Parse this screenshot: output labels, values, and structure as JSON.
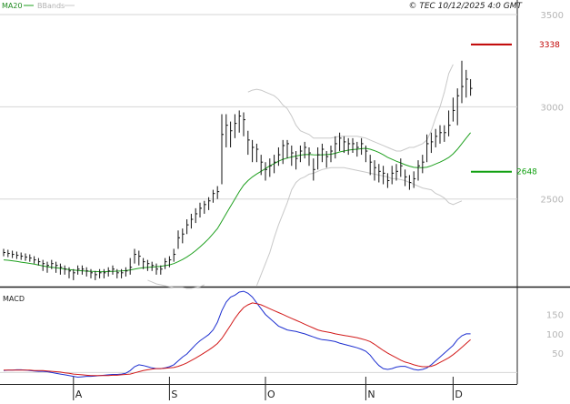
{
  "legend": {
    "ma_label": "MA20",
    "bb_label": "BBands"
  },
  "copyright": "© TEC 10/12/2025 4:0 GMT",
  "colors": {
    "ma": "#1fa01f",
    "bbands": "#c8c8c8",
    "bars": "#111111",
    "resistance": "#c00000",
    "support": "#10a010",
    "macd": "#1d2fd0",
    "signal": "#d21a1a",
    "grid": "#d6d6d6",
    "axis": "#222222"
  },
  "chart_data": [
    {
      "type": "line",
      "title": "",
      "ylim": [
        2030,
        3510
      ],
      "y_ticks": [
        2500,
        3000,
        3500
      ],
      "grid": true,
      "x_ticks": [
        {
          "label": "A",
          "index": 16
        },
        {
          "label": "S",
          "index": 38
        },
        {
          "label": "O",
          "index": 60
        },
        {
          "label": "N",
          "index": 83
        },
        {
          "label": "D",
          "index": 103
        }
      ],
      "ohlc_close": [
        2210,
        2205,
        2200,
        2195,
        2190,
        2185,
        2180,
        2170,
        2160,
        2150,
        2140,
        2150,
        2140,
        2130,
        2120,
        2110,
        2100,
        2120,
        2120,
        2110,
        2100,
        2090,
        2100,
        2100,
        2110,
        2120,
        2100,
        2100,
        2110,
        2130,
        2200,
        2190,
        2160,
        2150,
        2140,
        2120,
        2120,
        2160,
        2170,
        2200,
        2290,
        2310,
        2360,
        2390,
        2420,
        2450,
        2470,
        2490,
        2530,
        2540,
        2850,
        2900,
        2870,
        2910,
        2950,
        2930,
        2820,
        2780,
        2770,
        2700,
        2660,
        2680,
        2700,
        2740,
        2790,
        2800,
        2750,
        2720,
        2760,
        2780,
        2750,
        2660,
        2740,
        2770,
        2730,
        2760,
        2800,
        2830,
        2810,
        2800,
        2800,
        2780,
        2800,
        2760,
        2700,
        2670,
        2650,
        2640,
        2600,
        2640,
        2650,
        2680,
        2620,
        2590,
        2610,
        2680,
        2700,
        2800,
        2810,
        2840,
        2860,
        2860,
        2900,
        2980,
        3060,
        3110,
        3150,
        3100
      ],
      "ohlc_high": [
        2230,
        2225,
        2220,
        2215,
        2210,
        2205,
        2200,
        2190,
        2180,
        2170,
        2160,
        2170,
        2160,
        2150,
        2140,
        2130,
        2120,
        2140,
        2140,
        2130,
        2120,
        2110,
        2120,
        2120,
        2130,
        2140,
        2120,
        2120,
        2130,
        2180,
        2230,
        2220,
        2180,
        2170,
        2160,
        2150,
        2140,
        2180,
        2190,
        2230,
        2330,
        2340,
        2390,
        2420,
        2450,
        2480,
        2490,
        2510,
        2550,
        2570,
        2960,
        2960,
        2920,
        2960,
        2980,
        2970,
        2870,
        2820,
        2800,
        2740,
        2700,
        2720,
        2740,
        2780,
        2820,
        2820,
        2790,
        2760,
        2790,
        2810,
        2780,
        2720,
        2780,
        2800,
        2760,
        2790,
        2840,
        2860,
        2840,
        2830,
        2830,
        2810,
        2830,
        2790,
        2740,
        2710,
        2690,
        2680,
        2640,
        2680,
        2690,
        2720,
        2660,
        2630,
        2650,
        2710,
        2740,
        2850,
        2860,
        2880,
        2900,
        2900,
        2980,
        3050,
        3100,
        3250,
        3200,
        3150
      ],
      "ohlc_low": [
        2190,
        2185,
        2180,
        2175,
        2170,
        2165,
        2160,
        2150,
        2140,
        2110,
        2100,
        2120,
        2100,
        2090,
        2090,
        2070,
        2060,
        2090,
        2090,
        2080,
        2070,
        2060,
        2070,
        2070,
        2080,
        2090,
        2070,
        2070,
        2080,
        2090,
        2150,
        2140,
        2120,
        2110,
        2110,
        2090,
        2090,
        2120,
        2130,
        2160,
        2230,
        2260,
        2310,
        2340,
        2370,
        2400,
        2420,
        2440,
        2480,
        2500,
        2580,
        2780,
        2780,
        2830,
        2860,
        2840,
        2740,
        2700,
        2700,
        2630,
        2600,
        2620,
        2640,
        2680,
        2690,
        2720,
        2680,
        2660,
        2700,
        2720,
        2680,
        2600,
        2660,
        2700,
        2670,
        2700,
        2720,
        2760,
        2750,
        2740,
        2750,
        2730,
        2740,
        2700,
        2630,
        2600,
        2590,
        2580,
        2560,
        2580,
        2600,
        2620,
        2570,
        2550,
        2560,
        2600,
        2640,
        2700,
        2750,
        2780,
        2800,
        2810,
        2840,
        2920,
        2900,
        3020,
        3050,
        3060
      ],
      "ma20": [
        2170,
        2168,
        2165,
        2162,
        2158,
        2155,
        2151,
        2147,
        2142,
        2137,
        2133,
        2130,
        2127,
        2124,
        2121,
        2118,
        2115,
        2113,
        2111,
        2109,
        2108,
        2107,
        2106,
        2106,
        2107,
        2108,
        2109,
        2110,
        2112,
        2115,
        2120,
        2124,
        2127,
        2129,
        2131,
        2133,
        2135,
        2139,
        2143,
        2150,
        2160,
        2172,
        2186,
        2202,
        2220,
        2240,
        2262,
        2285,
        2312,
        2340,
        2380,
        2420,
        2460,
        2500,
        2540,
        2575,
        2600,
        2620,
        2636,
        2650,
        2665,
        2680,
        2692,
        2705,
        2715,
        2722,
        2728,
        2733,
        2738,
        2741,
        2742,
        2740,
        2739,
        2740,
        2741,
        2743,
        2748,
        2755,
        2760,
        2765,
        2768,
        2770,
        2773,
        2775,
        2770,
        2762,
        2752,
        2740,
        2726,
        2715,
        2705,
        2696,
        2686,
        2678,
        2672,
        2670,
        2670,
        2673,
        2680,
        2690,
        2700,
        2712,
        2725,
        2745,
        2770,
        2800,
        2830,
        2860
      ],
      "bb_upper": [
        null,
        null,
        null,
        null,
        null,
        null,
        null,
        null,
        null,
        null,
        null,
        null,
        null,
        null,
        null,
        null,
        null,
        null,
        null,
        null,
        null,
        null,
        null,
        null,
        null,
        null,
        null,
        null,
        null,
        null,
        null,
        null,
        null,
        null,
        null,
        null,
        null,
        null,
        null,
        null,
        null,
        null,
        null,
        null,
        null,
        null,
        null,
        null,
        null,
        null,
        null,
        null,
        null,
        null,
        null,
        null,
        3080,
        3090,
        3095,
        3090,
        3080,
        3070,
        3060,
        3040,
        3010,
        2990,
        2950,
        2900,
        2870,
        2860,
        2850,
        2830,
        2830,
        2830,
        2830,
        2830,
        2835,
        2840,
        2840,
        2840,
        2840,
        2840,
        2835,
        2830,
        2820,
        2810,
        2800,
        2790,
        2780,
        2770,
        2760,
        2760,
        2770,
        2780,
        2780,
        2790,
        2800,
        2820,
        2870,
        2940,
        3000,
        3080,
        3180,
        3230
      ],
      "bb_lower": [
        null,
        null,
        null,
        null,
        null,
        null,
        null,
        null,
        null,
        null,
        null,
        null,
        null,
        null,
        null,
        null,
        null,
        null,
        null,
        null,
        null,
        null,
        null,
        null,
        null,
        null,
        null,
        null,
        null,
        null,
        null,
        null,
        null,
        2060,
        2050,
        2040,
        2035,
        2030,
        2025,
        2020,
        2020,
        2020,
        2015,
        2015,
        2020,
        2025,
        2035,
        null,
        null,
        null,
        null,
        null,
        null,
        null,
        null,
        null,
        null,
        null,
        2030,
        2090,
        2150,
        2210,
        2290,
        2360,
        2420,
        2480,
        2550,
        2590,
        2610,
        2620,
        2635,
        2640,
        2650,
        2660,
        2665,
        2670,
        2670,
        2670,
        2670,
        2665,
        2660,
        2655,
        2650,
        2645,
        2640,
        2635,
        2630,
        2625,
        2620,
        2610,
        2610,
        2605,
        2600,
        2590,
        2580,
        2570,
        2560,
        2555,
        2550,
        2530,
        2520,
        2505,
        2480,
        2470,
        2480,
        2490
      ]
    },
    {
      "type": "line",
      "title": "MACD",
      "ylim": [
        -25,
        215
      ],
      "y_ticks": [
        50,
        100,
        150
      ],
      "series": [
        {
          "key": "macd",
          "values": [
            5,
            6,
            6,
            7,
            7,
            6,
            5,
            4,
            3,
            3,
            2,
            0,
            -2,
            -4,
            -6,
            -8,
            -10,
            -12,
            -11,
            -10,
            -10,
            -9,
            -8,
            -7,
            -6,
            -5,
            -5,
            -4,
            -2,
            5,
            15,
            20,
            18,
            15,
            12,
            10,
            10,
            12,
            15,
            20,
            30,
            40,
            48,
            60,
            72,
            82,
            90,
            98,
            110,
            130,
            160,
            182,
            195,
            200,
            208,
            210,
            205,
            195,
            180,
            165,
            150,
            140,
            130,
            120,
            115,
            110,
            108,
            106,
            103,
            100,
            96,
            92,
            88,
            85,
            84,
            82,
            80,
            76,
            73,
            70,
            67,
            64,
            60,
            55,
            45,
            30,
            18,
            10,
            8,
            10,
            14,
            16,
            16,
            12,
            8,
            6,
            8,
            12,
            20,
            30,
            40,
            50,
            60,
            70,
            85,
            95,
            100,
            100
          ]
        },
        {
          "key": "signal",
          "values": [
            6,
            6,
            6,
            6,
            6,
            6,
            6,
            5,
            5,
            5,
            4,
            3,
            2,
            1,
            -1,
            -2,
            -4,
            -5,
            -6,
            -7,
            -8,
            -8,
            -8,
            -8,
            -8,
            -7,
            -7,
            -6,
            -5,
            -4,
            -1,
            2,
            5,
            7,
            9,
            10,
            10,
            11,
            12,
            13,
            16,
            20,
            25,
            31,
            37,
            44,
            51,
            58,
            66,
            75,
            88,
            105,
            122,
            140,
            155,
            168,
            175,
            180,
            178,
            175,
            170,
            165,
            160,
            155,
            150,
            145,
            140,
            135,
            130,
            125,
            120,
            115,
            110,
            107,
            105,
            103,
            100,
            98,
            96,
            94,
            92,
            90,
            87,
            84,
            80,
            73,
            65,
            57,
            50,
            44,
            38,
            32,
            27,
            24,
            20,
            17,
            15,
            15,
            16,
            20,
            26,
            32,
            38,
            46,
            55,
            65,
            75,
            85
          ]
        }
      ]
    }
  ],
  "markers": [
    {
      "name": "resistance",
      "label": "3338",
      "value": 3338
    },
    {
      "name": "support",
      "label": "2648",
      "value": 2648
    }
  ],
  "macd_panel": {
    "label": "MACD"
  }
}
